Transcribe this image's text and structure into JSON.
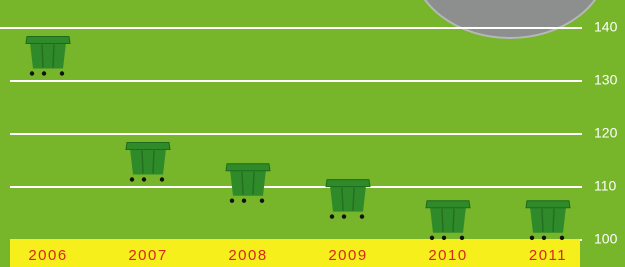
{
  "chart_data": {
    "type": "pictogram",
    "categories": [
      "2006",
      "2007",
      "2008",
      "2009",
      "2010",
      "2011"
    ],
    "values": [
      135,
      115,
      111,
      108,
      104,
      104
    ],
    "color": "#2f8a2a",
    "ylim": [
      100,
      145
    ],
    "yticks": [
      100,
      110,
      120,
      130,
      140
    ],
    "grid": true
  }
}
